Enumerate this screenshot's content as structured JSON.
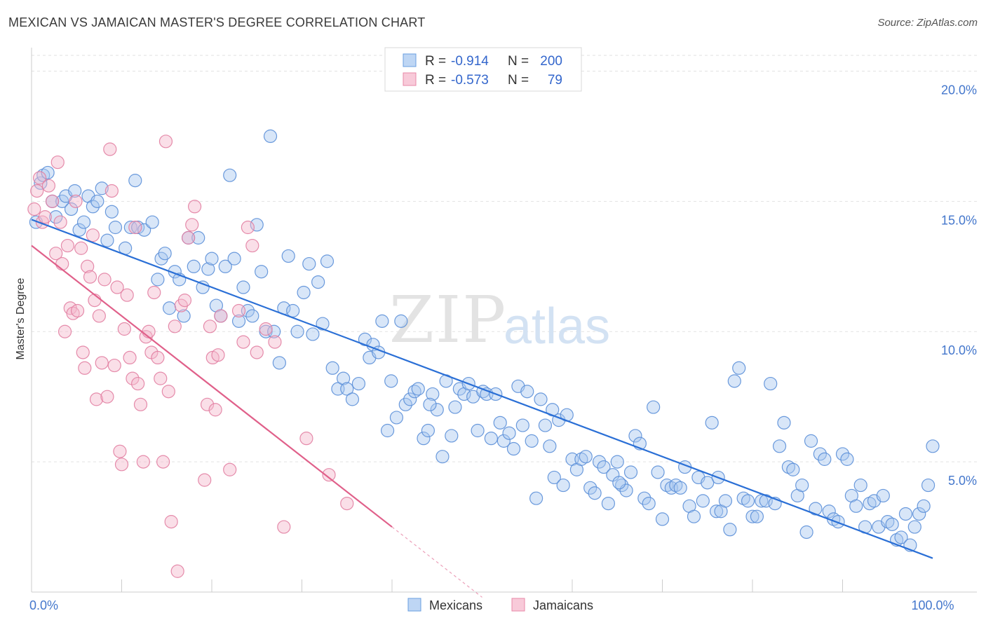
{
  "header": {
    "title": "MEXICAN VS JAMAICAN MASTER'S DEGREE CORRELATION CHART",
    "source": "Source: ZipAtlas.com"
  },
  "watermark": {
    "zip": "ZIP",
    "atlas": "atlas"
  },
  "legend": {
    "r_label": "R =",
    "n_label": "N =",
    "rows": [
      {
        "r": "-0.914",
        "n": "200",
        "color": "#a8c8f0",
        "stroke": "#6a9fe0"
      },
      {
        "r": "-0.573",
        "n": "79",
        "color": "#f5b8cc",
        "stroke": "#e888a8"
      }
    ]
  },
  "bottom_legend": [
    "Mexicans",
    "Jamaicans"
  ],
  "chart_data": {
    "type": "scatter",
    "ylabel": "Master's Degree",
    "xlim": [
      0,
      100
    ],
    "ylim": [
      0,
      20.9
    ],
    "x_tick_labels": [
      {
        "value": 0,
        "label": "0.0%"
      },
      {
        "value": 100,
        "label": "100.0%"
      }
    ],
    "y_ticks": [
      {
        "value": 5,
        "label": "5.0%"
      },
      {
        "value": 10,
        "label": "10.0%"
      },
      {
        "value": 15,
        "label": "15.0%"
      },
      {
        "value": 20,
        "label": "20.0%"
      }
    ],
    "x_minor_ticks": [
      10,
      20,
      30,
      40,
      60,
      70,
      80,
      90
    ],
    "grid": true,
    "legend_position": "top-center",
    "series": [
      {
        "name": "Mexicans",
        "color": "#a8c8f0",
        "stroke": "#5b8fd8",
        "trend": {
          "x": [
            0,
            100
          ],
          "y": [
            14.3,
            1.3
          ],
          "color": "#2a6fd6"
        },
        "points": [
          [
            0.5,
            14.2
          ],
          [
            1.0,
            15.7
          ],
          [
            1.3,
            16.0
          ],
          [
            1.8,
            16.1
          ],
          [
            2.3,
            15.0
          ],
          [
            2.7,
            14.4
          ],
          [
            3.4,
            15.0
          ],
          [
            3.8,
            15.2
          ],
          [
            4.4,
            14.7
          ],
          [
            4.8,
            15.4
          ],
          [
            5.3,
            13.9
          ],
          [
            5.8,
            14.2
          ],
          [
            6.3,
            15.2
          ],
          [
            6.8,
            14.8
          ],
          [
            7.3,
            15.0
          ],
          [
            7.8,
            15.5
          ],
          [
            8.4,
            13.5
          ],
          [
            8.9,
            14.6
          ],
          [
            9.3,
            14.0
          ],
          [
            10.4,
            13.2
          ],
          [
            11.0,
            14.0
          ],
          [
            11.5,
            15.8
          ],
          [
            11.8,
            14.0
          ],
          [
            12.5,
            13.9
          ],
          [
            13.4,
            14.2
          ],
          [
            14.0,
            12.0
          ],
          [
            14.4,
            12.8
          ],
          [
            14.8,
            13.0
          ],
          [
            15.3,
            10.9
          ],
          [
            15.9,
            12.3
          ],
          [
            16.4,
            12.0
          ],
          [
            16.9,
            10.6
          ],
          [
            17.4,
            13.6
          ],
          [
            18.0,
            12.5
          ],
          [
            18.5,
            13.6
          ],
          [
            19.0,
            11.7
          ],
          [
            19.6,
            12.4
          ],
          [
            20.0,
            12.8
          ],
          [
            20.5,
            11.0
          ],
          [
            21.0,
            10.6
          ],
          [
            21.5,
            12.5
          ],
          [
            22.0,
            16.0
          ],
          [
            22.5,
            12.8
          ],
          [
            23.0,
            10.4
          ],
          [
            23.5,
            11.7
          ],
          [
            24.0,
            10.8
          ],
          [
            24.5,
            10.6
          ],
          [
            25.0,
            14.1
          ],
          [
            25.5,
            12.3
          ],
          [
            26.0,
            10.0
          ],
          [
            26.5,
            17.5
          ],
          [
            26.9,
            10.0
          ],
          [
            27.5,
            8.8
          ],
          [
            28.0,
            10.9
          ],
          [
            28.5,
            12.9
          ],
          [
            29.0,
            10.8
          ],
          [
            29.5,
            10.0
          ],
          [
            30.2,
            11.5
          ],
          [
            30.8,
            12.6
          ],
          [
            31.2,
            9.9
          ],
          [
            31.8,
            11.9
          ],
          [
            32.3,
            10.3
          ],
          [
            32.8,
            12.7
          ],
          [
            33.4,
            8.6
          ],
          [
            34.0,
            7.8
          ],
          [
            34.6,
            8.2
          ],
          [
            35.0,
            7.8
          ],
          [
            35.6,
            7.4
          ],
          [
            36.3,
            8.0
          ],
          [
            37.0,
            9.7
          ],
          [
            37.5,
            9.0
          ],
          [
            37.9,
            9.5
          ],
          [
            38.5,
            9.2
          ],
          [
            38.9,
            10.4
          ],
          [
            39.5,
            6.2
          ],
          [
            39.9,
            8.1
          ],
          [
            40.5,
            6.7
          ],
          [
            41.0,
            10.4
          ],
          [
            41.5,
            7.2
          ],
          [
            42.0,
            7.4
          ],
          [
            42.5,
            7.7
          ],
          [
            42.9,
            7.8
          ],
          [
            43.5,
            5.9
          ],
          [
            44.0,
            6.2
          ],
          [
            44.5,
            7.6
          ],
          [
            45.0,
            7.0
          ],
          [
            45.6,
            5.2
          ],
          [
            46.0,
            8.1
          ],
          [
            46.6,
            6.0
          ],
          [
            47.0,
            7.1
          ],
          [
            47.5,
            7.8
          ],
          [
            48.0,
            7.6
          ],
          [
            48.5,
            8.0
          ],
          [
            49.0,
            7.5
          ],
          [
            49.5,
            6.2
          ],
          [
            50.1,
            7.7
          ],
          [
            50.5,
            7.6
          ],
          [
            51.0,
            5.9
          ],
          [
            51.5,
            7.6
          ],
          [
            52.0,
            6.5
          ],
          [
            52.4,
            5.8
          ],
          [
            53.0,
            6.1
          ],
          [
            53.5,
            5.5
          ],
          [
            54.0,
            7.9
          ],
          [
            54.5,
            6.4
          ],
          [
            55.0,
            7.7
          ],
          [
            55.5,
            5.8
          ],
          [
            56.0,
            3.6
          ],
          [
            56.5,
            7.4
          ],
          [
            57.0,
            6.4
          ],
          [
            57.5,
            5.6
          ],
          [
            58.0,
            4.4
          ],
          [
            58.5,
            6.6
          ],
          [
            59.0,
            4.1
          ],
          [
            59.4,
            6.8
          ],
          [
            60.0,
            5.1
          ],
          [
            60.5,
            4.7
          ],
          [
            61.0,
            5.1
          ],
          [
            61.5,
            5.2
          ],
          [
            62.0,
            4.0
          ],
          [
            62.5,
            3.8
          ],
          [
            63.0,
            5.0
          ],
          [
            63.5,
            4.8
          ],
          [
            64.0,
            3.4
          ],
          [
            64.5,
            4.5
          ],
          [
            65.0,
            5.0
          ],
          [
            65.5,
            4.1
          ],
          [
            66.0,
            3.9
          ],
          [
            66.5,
            4.6
          ],
          [
            67.0,
            6.0
          ],
          [
            67.5,
            5.7
          ],
          [
            68.0,
            3.6
          ],
          [
            68.5,
            3.4
          ],
          [
            69.0,
            7.1
          ],
          [
            69.5,
            4.6
          ],
          [
            70.0,
            2.8
          ],
          [
            70.5,
            4.1
          ],
          [
            71.0,
            4.0
          ],
          [
            71.5,
            4.1
          ],
          [
            72.0,
            4.0
          ],
          [
            72.5,
            4.8
          ],
          [
            73.0,
            3.3
          ],
          [
            73.5,
            2.9
          ],
          [
            74.0,
            4.4
          ],
          [
            74.5,
            3.5
          ],
          [
            75.0,
            4.2
          ],
          [
            75.5,
            6.5
          ],
          [
            76.0,
            3.1
          ],
          [
            76.5,
            3.1
          ],
          [
            77.0,
            3.5
          ],
          [
            77.5,
            2.4
          ],
          [
            78.0,
            8.1
          ],
          [
            78.5,
            8.6
          ],
          [
            79.0,
            3.6
          ],
          [
            79.5,
            3.5
          ],
          [
            80.0,
            2.9
          ],
          [
            80.5,
            2.9
          ],
          [
            81.0,
            3.5
          ],
          [
            81.5,
            3.5
          ],
          [
            82.0,
            8.0
          ],
          [
            82.5,
            3.4
          ],
          [
            83.0,
            5.6
          ],
          [
            83.5,
            6.5
          ],
          [
            84.0,
            4.8
          ],
          [
            84.5,
            4.7
          ],
          [
            85.0,
            3.7
          ],
          [
            85.5,
            4.1
          ],
          [
            86.0,
            2.3
          ],
          [
            86.5,
            5.8
          ],
          [
            87.0,
            3.2
          ],
          [
            87.5,
            5.3
          ],
          [
            88.0,
            5.1
          ],
          [
            88.5,
            3.1
          ],
          [
            89.0,
            2.8
          ],
          [
            89.5,
            2.7
          ],
          [
            90.0,
            5.3
          ],
          [
            90.5,
            5.1
          ],
          [
            91.0,
            3.7
          ],
          [
            91.5,
            3.3
          ],
          [
            92.0,
            4.1
          ],
          [
            92.5,
            2.5
          ],
          [
            93.0,
            3.4
          ],
          [
            93.5,
            3.5
          ],
          [
            94.0,
            2.5
          ],
          [
            94.5,
            3.7
          ],
          [
            95.0,
            2.7
          ],
          [
            95.5,
            2.6
          ],
          [
            96.0,
            2.0
          ],
          [
            96.5,
            2.1
          ],
          [
            97.0,
            3.0
          ],
          [
            97.5,
            1.8
          ],
          [
            98.0,
            2.5
          ],
          [
            98.5,
            3.0
          ],
          [
            99.0,
            3.3
          ],
          [
            99.5,
            4.1
          ],
          [
            100.0,
            5.6
          ],
          [
            44.2,
            7.2
          ],
          [
            57.8,
            7.0
          ],
          [
            65.2,
            4.2
          ],
          [
            76.2,
            4.4
          ]
        ]
      },
      {
        "name": "Jamaicans",
        "color": "#f5b8cc",
        "stroke": "#e27fa2",
        "trend": {
          "x": [
            0,
            40
          ],
          "y": [
            13.3,
            2.5
          ],
          "dash_x": [
            40,
            50
          ],
          "dash_y": [
            2.5,
            -0.2
          ],
          "color": "#e0608a"
        },
        "points": [
          [
            0.3,
            14.7
          ],
          [
            0.6,
            15.4
          ],
          [
            0.9,
            15.9
          ],
          [
            1.2,
            14.2
          ],
          [
            1.5,
            14.4
          ],
          [
            1.9,
            15.6
          ],
          [
            2.3,
            15.0
          ],
          [
            2.7,
            13.0
          ],
          [
            2.9,
            16.5
          ],
          [
            3.2,
            14.2
          ],
          [
            3.4,
            12.6
          ],
          [
            3.7,
            10.0
          ],
          [
            4.0,
            13.3
          ],
          [
            4.3,
            10.9
          ],
          [
            4.6,
            10.7
          ],
          [
            4.9,
            15.0
          ],
          [
            5.1,
            10.8
          ],
          [
            5.5,
            13.2
          ],
          [
            5.7,
            9.2
          ],
          [
            5.9,
            8.6
          ],
          [
            6.2,
            12.5
          ],
          [
            6.5,
            12.1
          ],
          [
            6.8,
            13.7
          ],
          [
            7.0,
            11.2
          ],
          [
            7.2,
            7.4
          ],
          [
            7.5,
            10.6
          ],
          [
            7.8,
            8.8
          ],
          [
            8.1,
            12.0
          ],
          [
            8.4,
            7.5
          ],
          [
            8.7,
            17.0
          ],
          [
            8.9,
            15.4
          ],
          [
            9.2,
            8.7
          ],
          [
            9.5,
            11.7
          ],
          [
            9.8,
            5.4
          ],
          [
            10.0,
            4.9
          ],
          [
            10.3,
            10.1
          ],
          [
            10.6,
            11.4
          ],
          [
            10.9,
            9.0
          ],
          [
            11.2,
            8.2
          ],
          [
            11.5,
            14.0
          ],
          [
            11.8,
            8.0
          ],
          [
            12.1,
            7.2
          ],
          [
            12.4,
            5.0
          ],
          [
            12.7,
            9.8
          ],
          [
            13.0,
            10.0
          ],
          [
            13.3,
            9.2
          ],
          [
            13.6,
            11.5
          ],
          [
            14.0,
            9.0
          ],
          [
            14.3,
            8.2
          ],
          [
            14.6,
            5.0
          ],
          [
            14.9,
            17.3
          ],
          [
            15.2,
            7.7
          ],
          [
            15.5,
            2.7
          ],
          [
            15.9,
            10.2
          ],
          [
            16.2,
            0.8
          ],
          [
            16.6,
            11.0
          ],
          [
            17.0,
            11.2
          ],
          [
            17.4,
            13.6
          ],
          [
            17.8,
            14.1
          ],
          [
            18.1,
            14.8
          ],
          [
            19.2,
            4.3
          ],
          [
            19.5,
            7.2
          ],
          [
            19.8,
            10.2
          ],
          [
            20.1,
            9.0
          ],
          [
            20.4,
            7.0
          ],
          [
            20.7,
            9.1
          ],
          [
            21.0,
            10.6
          ],
          [
            22.0,
            4.7
          ],
          [
            23.0,
            10.8
          ],
          [
            23.5,
            9.6
          ],
          [
            24.0,
            14.0
          ],
          [
            24.5,
            13.3
          ],
          [
            25.0,
            9.2
          ],
          [
            26.0,
            10.1
          ],
          [
            27.0,
            9.6
          ],
          [
            28.0,
            2.5
          ],
          [
            30.5,
            5.9
          ],
          [
            33.0,
            4.5
          ],
          [
            35.0,
            3.4
          ]
        ]
      }
    ]
  }
}
